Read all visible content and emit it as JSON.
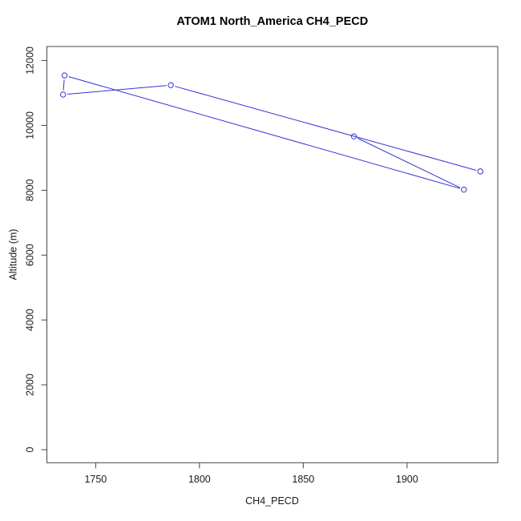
{
  "window": {
    "background": "#ffffff"
  },
  "style": {
    "axis_color": "#454545",
    "text_color": "#1a1a1a",
    "accent": "#3434d8"
  },
  "chart_data": {
    "type": "line",
    "title": "ATOM1 North_America CH4_PECD",
    "xlabel": "CH4_PECD",
    "ylabel": "Altitude (m)",
    "x_ticks": [
      1750,
      1800,
      1850,
      1900
    ],
    "y_ticks": [
      0,
      2000,
      4000,
      6000,
      8000,
      10000,
      12000
    ],
    "xlim": [
      1726.5,
      1943.7
    ],
    "ylim": [
      -403,
      12433
    ],
    "grid": false,
    "legend": null,
    "marker": "open-circle",
    "line_style": "segments-with-marker-gaps",
    "series": [
      {
        "name": "altitude-vs-ch4",
        "color": "#3434d8",
        "points_xy": [
          [
            1935.3,
            8580
          ],
          [
            1786.2,
            11240
          ],
          [
            1734.3,
            10950
          ],
          [
            1735.0,
            11540
          ],
          [
            1927.4,
            8020
          ],
          [
            1874.4,
            9660
          ]
        ]
      }
    ]
  }
}
